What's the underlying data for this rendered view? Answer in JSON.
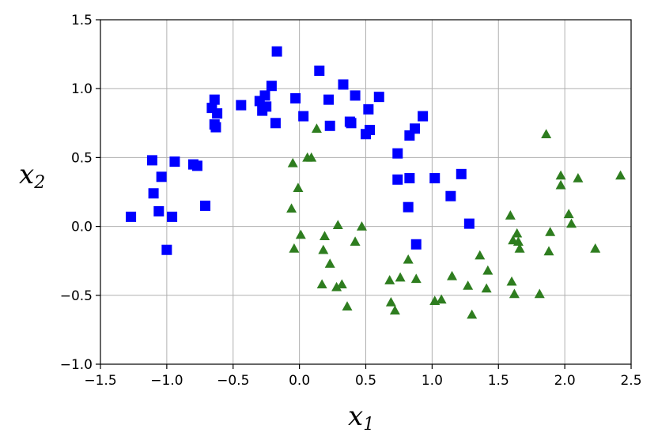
{
  "chart_data": {
    "type": "scatter",
    "xlabel": "x",
    "xlabel_sub": "1",
    "ylabel": "x",
    "ylabel_sub": "2",
    "xlim": [
      -1.5,
      2.5
    ],
    "ylim": [
      -1.0,
      1.5
    ],
    "xticks": [
      "−1.5",
      "−1.0",
      "−0.5",
      "0.0",
      "0.5",
      "1.0",
      "1.5",
      "2.0",
      "2.5"
    ],
    "yticks": [
      "−1.0",
      "−0.5",
      "0.0",
      "0.5",
      "1.0",
      "1.5"
    ],
    "xtick_values": [
      -1.5,
      -1.0,
      -0.5,
      0.0,
      0.5,
      1.0,
      1.5,
      2.0,
      2.5
    ],
    "ytick_values": [
      -1.0,
      -0.5,
      0.0,
      0.5,
      1.0,
      1.5
    ],
    "grid": true,
    "series": [
      {
        "marker": "square",
        "color": "#0000ff",
        "points": [
          [
            -1.27,
            0.07
          ],
          [
            -1.11,
            0.48
          ],
          [
            -1.1,
            0.24
          ],
          [
            -1.06,
            0.11
          ],
          [
            -1.04,
            0.36
          ],
          [
            -1.0,
            -0.17
          ],
          [
            -0.96,
            0.07
          ],
          [
            -0.94,
            0.47
          ],
          [
            -0.8,
            0.45
          ],
          [
            -0.77,
            0.44
          ],
          [
            -0.71,
            0.15
          ],
          [
            -0.66,
            0.86
          ],
          [
            -0.64,
            0.92
          ],
          [
            -0.64,
            0.74
          ],
          [
            -0.63,
            0.72
          ],
          [
            -0.62,
            0.82
          ],
          [
            -0.44,
            0.88
          ],
          [
            -0.3,
            0.91
          ],
          [
            -0.28,
            0.84
          ],
          [
            -0.26,
            0.95
          ],
          [
            -0.25,
            0.87
          ],
          [
            -0.21,
            1.02
          ],
          [
            -0.18,
            0.75
          ],
          [
            -0.17,
            1.27
          ],
          [
            -0.03,
            0.93
          ],
          [
            0.03,
            0.8
          ],
          [
            0.15,
            1.13
          ],
          [
            0.22,
            0.92
          ],
          [
            0.23,
            0.73
          ],
          [
            0.33,
            1.03
          ],
          [
            0.38,
            0.76
          ],
          [
            0.39,
            0.75
          ],
          [
            0.42,
            0.95
          ],
          [
            0.5,
            0.67
          ],
          [
            0.52,
            0.85
          ],
          [
            0.53,
            0.7
          ],
          [
            0.6,
            0.94
          ],
          [
            0.74,
            0.53
          ],
          [
            0.74,
            0.34
          ],
          [
            0.82,
            0.14
          ],
          [
            0.83,
            0.35
          ],
          [
            0.83,
            0.66
          ],
          [
            0.87,
            0.71
          ],
          [
            0.88,
            -0.13
          ],
          [
            0.93,
            0.8
          ],
          [
            1.02,
            0.35
          ],
          [
            1.14,
            0.22
          ],
          [
            1.22,
            0.38
          ],
          [
            1.28,
            0.02
          ]
        ]
      },
      {
        "marker": "triangle",
        "color": "#2e7d1f",
        "points": [
          [
            -0.06,
            0.13
          ],
          [
            -0.05,
            0.46
          ],
          [
            -0.04,
            -0.16
          ],
          [
            -0.01,
            0.28
          ],
          [
            0.01,
            -0.06
          ],
          [
            0.06,
            0.5
          ],
          [
            0.09,
            0.5
          ],
          [
            0.13,
            0.71
          ],
          [
            0.17,
            -0.42
          ],
          [
            0.18,
            -0.17
          ],
          [
            0.19,
            -0.07
          ],
          [
            0.23,
            -0.27
          ],
          [
            0.28,
            -0.44
          ],
          [
            0.29,
            0.01
          ],
          [
            0.32,
            -0.42
          ],
          [
            0.36,
            -0.58
          ],
          [
            0.42,
            -0.11
          ],
          [
            0.47,
            0.0
          ],
          [
            0.68,
            -0.39
          ],
          [
            0.69,
            -0.55
          ],
          [
            0.72,
            -0.61
          ],
          [
            0.76,
            -0.37
          ],
          [
            0.82,
            -0.24
          ],
          [
            0.88,
            -0.38
          ],
          [
            1.02,
            -0.54
          ],
          [
            1.07,
            -0.53
          ],
          [
            1.15,
            -0.36
          ],
          [
            1.27,
            -0.43
          ],
          [
            1.3,
            -0.64
          ],
          [
            1.36,
            -0.21
          ],
          [
            1.41,
            -0.45
          ],
          [
            1.42,
            -0.32
          ],
          [
            1.59,
            0.08
          ],
          [
            1.6,
            -0.4
          ],
          [
            1.61,
            -0.1
          ],
          [
            1.62,
            -0.49
          ],
          [
            1.64,
            -0.05
          ],
          [
            1.65,
            -0.11
          ],
          [
            1.66,
            -0.16
          ],
          [
            1.81,
            -0.49
          ],
          [
            1.86,
            0.67
          ],
          [
            1.88,
            -0.18
          ],
          [
            1.89,
            -0.04
          ],
          [
            1.97,
            0.3
          ],
          [
            1.97,
            0.37
          ],
          [
            2.03,
            0.09
          ],
          [
            2.05,
            0.02
          ],
          [
            2.1,
            0.35
          ],
          [
            2.23,
            -0.16
          ],
          [
            2.42,
            0.37
          ]
        ]
      }
    ]
  }
}
